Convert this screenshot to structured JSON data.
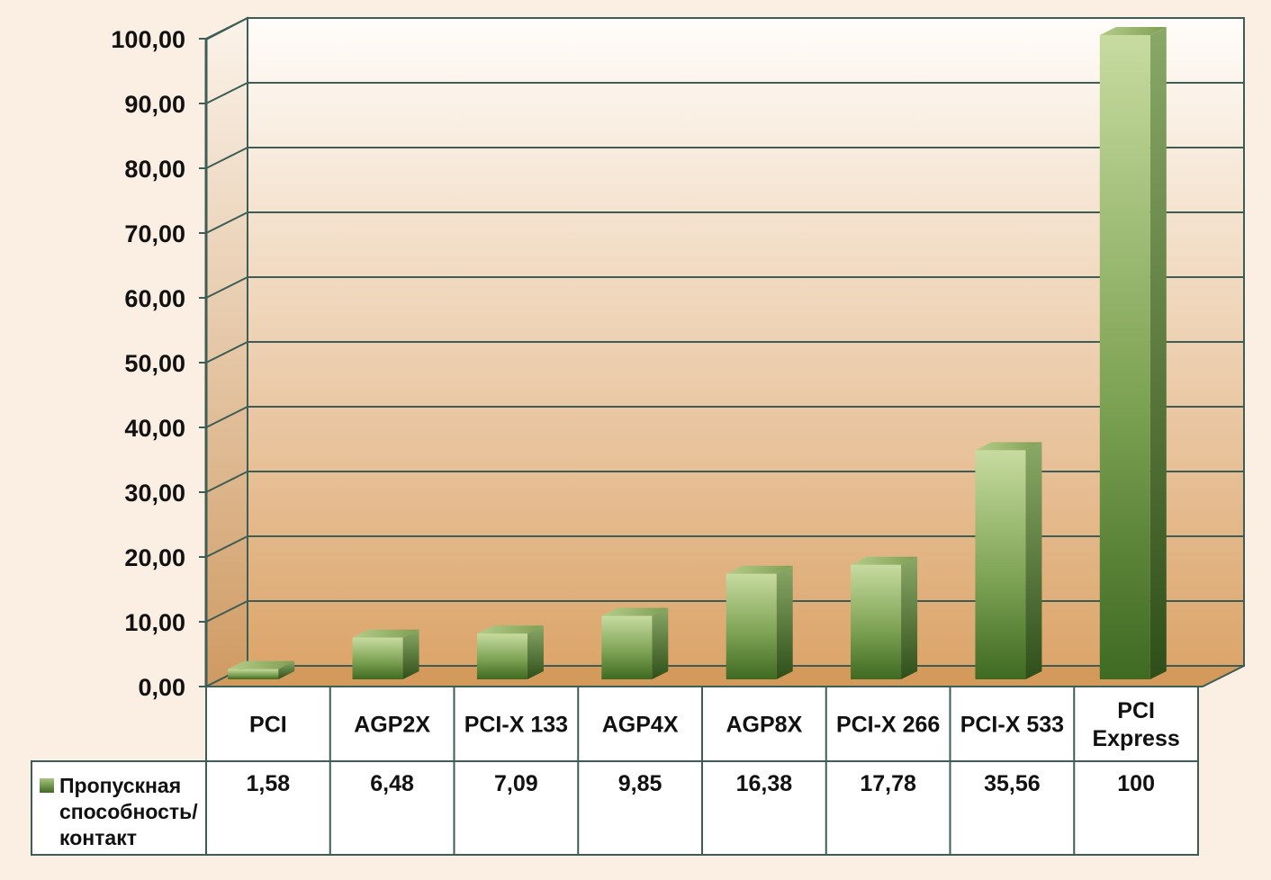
{
  "chart_data": {
    "type": "bar",
    "title": "",
    "xlabel": "",
    "ylabel": "",
    "ylim": [
      0,
      100
    ],
    "y_ticks": [
      "0,00",
      "10,00",
      "20,00",
      "30,00",
      "40,00",
      "50,00",
      "60,00",
      "70,00",
      "80,00",
      "90,00",
      "100,00"
    ],
    "grid": true,
    "style": "3d-column with data table",
    "categories": [
      [
        "PCI"
      ],
      [
        "AGP2X"
      ],
      [
        "PCI-X 133"
      ],
      [
        "AGP4X"
      ],
      [
        "AGP8X"
      ],
      [
        "PCI-X 266"
      ],
      [
        "PCI-X 533"
      ],
      [
        "PCI",
        "Express"
      ]
    ],
    "series": [
      {
        "name": [
          "Пропускная",
          "способность/",
          "контакт"
        ],
        "values": [
          1.58,
          6.48,
          7.09,
          9.85,
          16.38,
          17.78,
          35.56,
          100
        ],
        "value_labels": [
          "1,58",
          "6,48",
          "7,09",
          "9,85",
          "16,38",
          "17,78",
          "35,56",
          "100"
        ]
      }
    ],
    "colors": {
      "page_background": "#fbeee2",
      "wall_top": "#fffdfa",
      "wall_bottom": "#dca56b",
      "floor": "#d49a5c",
      "gridline": "#3d5e56",
      "bar_light": "#c7dba0",
      "bar_mid": "#7fa455",
      "bar_dark": "#3f6a22",
      "bar_side": "#4a6e2e",
      "bar_top": "#a9c47c",
      "table_background": "#ffffff"
    }
  }
}
